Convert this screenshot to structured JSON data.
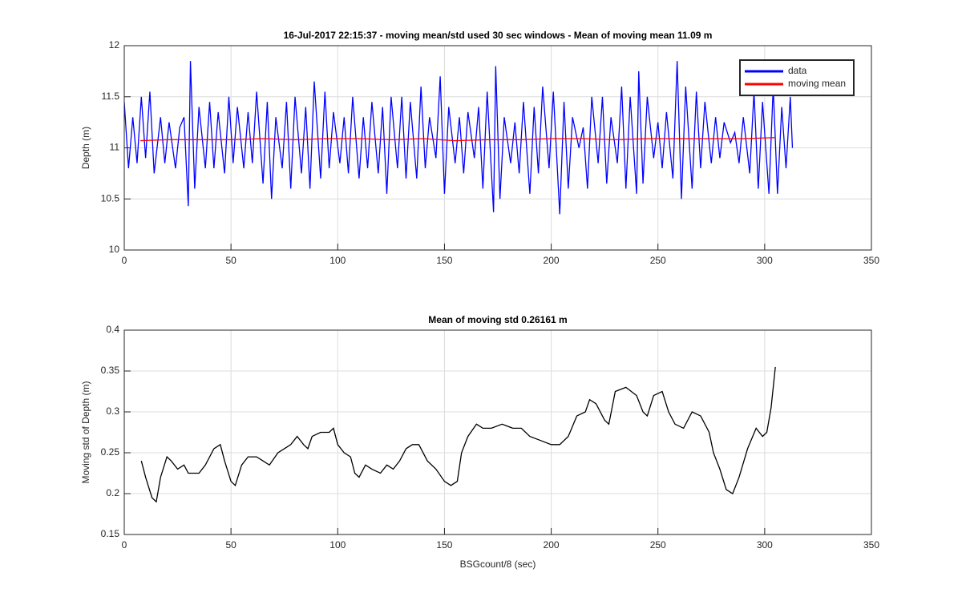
{
  "chart_data": [
    {
      "type": "line",
      "title": "16-Jul-2017 22:15:37 - moving mean/std used 30 sec windows - Mean of moving mean 11.09 m",
      "ylabel": "Depth (m)",
      "xlim": [
        0,
        350
      ],
      "xticks": [
        0,
        50,
        100,
        150,
        200,
        250,
        300,
        350
      ],
      "ylim": [
        10,
        12
      ],
      "yticks": [
        10,
        10.5,
        11,
        11.5,
        12
      ],
      "grid": true,
      "legend": "upper right",
      "series": [
        {
          "name": "data",
          "color": "#0000ff",
          "x": [
            0,
            2,
            4,
            6,
            8,
            10,
            12,
            14,
            17,
            19,
            21,
            24,
            26,
            28,
            30,
            31,
            33,
            35,
            38,
            40,
            42,
            44,
            47,
            49,
            51,
            53,
            56,
            58,
            60,
            62,
            65,
            67,
            69,
            71,
            74,
            76,
            78,
            80,
            83,
            85,
            87,
            89,
            92,
            94,
            96,
            98,
            101,
            103,
            105,
            107,
            110,
            112,
            114,
            116,
            119,
            121,
            123,
            125,
            128,
            130,
            132,
            134,
            137,
            139,
            141,
            143,
            146,
            148,
            150,
            152,
            155,
            157,
            159,
            161,
            164,
            166,
            168,
            170,
            173,
            174,
            176,
            178,
            181,
            183,
            185,
            187,
            190,
            192,
            194,
            196,
            199,
            201,
            204,
            206,
            208,
            210,
            213,
            215,
            217,
            219,
            222,
            224,
            226,
            228,
            231,
            233,
            235,
            237,
            240,
            241,
            243,
            245,
            248,
            250,
            252,
            254,
            257,
            259,
            261,
            263,
            266,
            268,
            270,
            272,
            275,
            277,
            279,
            281,
            284,
            286,
            288,
            290,
            293,
            295,
            297,
            299,
            302,
            304,
            306,
            308,
            310,
            312,
            313
          ],
          "values": [
            11.45,
            10.8,
            11.3,
            10.85,
            11.5,
            10.9,
            11.55,
            10.75,
            11.3,
            10.85,
            11.25,
            10.8,
            11.2,
            11.3,
            10.43,
            11.85,
            10.6,
            11.4,
            10.8,
            11.45,
            10.8,
            11.35,
            10.75,
            11.5,
            10.85,
            11.4,
            10.8,
            11.35,
            10.85,
            11.55,
            10.65,
            11.45,
            10.5,
            11.3,
            10.8,
            11.45,
            10.6,
            11.5,
            10.75,
            11.4,
            10.6,
            11.65,
            10.7,
            11.55,
            10.8,
            11.35,
            10.85,
            11.3,
            10.75,
            11.5,
            10.7,
            11.3,
            10.8,
            11.45,
            10.75,
            11.4,
            10.55,
            11.5,
            10.8,
            11.5,
            10.7,
            11.45,
            10.7,
            11.6,
            10.8,
            11.3,
            10.9,
            11.7,
            10.55,
            11.4,
            10.85,
            11.3,
            10.75,
            11.35,
            10.9,
            11.4,
            10.6,
            11.55,
            10.37,
            11.8,
            10.5,
            11.3,
            10.85,
            11.25,
            10.75,
            11.45,
            10.55,
            11.4,
            10.75,
            11.6,
            10.8,
            11.55,
            10.35,
            11.45,
            10.6,
            11.3,
            11.0,
            11.2,
            10.6,
            11.5,
            10.85,
            11.5,
            10.65,
            11.3,
            10.85,
            11.6,
            10.6,
            11.5,
            10.55,
            11.75,
            10.65,
            11.5,
            10.9,
            11.25,
            10.8,
            11.35,
            10.7,
            11.85,
            10.5,
            11.6,
            10.6,
            11.55,
            10.8,
            11.45,
            10.85,
            11.3,
            10.9,
            11.25,
            11.05,
            11.15,
            10.85,
            11.3,
            10.75,
            11.55,
            10.6,
            11.45,
            10.55,
            11.6,
            10.55,
            11.4,
            10.8,
            11.5,
            11.0
          ]
        },
        {
          "name": "moving mean",
          "color": "#ff0000",
          "x": [
            7.5,
            20,
            35,
            50,
            65,
            80,
            95,
            110,
            125,
            140,
            155,
            170,
            185,
            200,
            215,
            230,
            245,
            260,
            275,
            290,
            305
          ],
          "values": [
            11.07,
            11.08,
            11.08,
            11.08,
            11.09,
            11.08,
            11.09,
            11.09,
            11.08,
            11.09,
            11.07,
            11.08,
            11.08,
            11.09,
            11.09,
            11.08,
            11.09,
            11.09,
            11.09,
            11.09,
            11.1
          ]
        }
      ]
    },
    {
      "type": "line",
      "title": "Mean of moving std 0.26161 m",
      "xlabel": "BSGcount/8 (sec)",
      "ylabel": "Moving std of Depth (m)",
      "xlim": [
        0,
        350
      ],
      "xticks": [
        0,
        50,
        100,
        150,
        200,
        250,
        300,
        350
      ],
      "ylim": [
        0.15,
        0.4
      ],
      "yticks": [
        0.15,
        0.2,
        0.25,
        0.3,
        0.35,
        0.4
      ],
      "grid": true,
      "series": [
        {
          "color": "#000000",
          "x": [
            8,
            10,
            13,
            15,
            17,
            20,
            22,
            25,
            28,
            30,
            35,
            38,
            42,
            45,
            47,
            50,
            52,
            55,
            58,
            62,
            65,
            68,
            72,
            75,
            78,
            81,
            84,
            86,
            88,
            92,
            96,
            98,
            100,
            103,
            106,
            108,
            110,
            113,
            116,
            120,
            123,
            126,
            129,
            132,
            135,
            138,
            142,
            146,
            150,
            153,
            156,
            158,
            161,
            165,
            168,
            172,
            177,
            182,
            186,
            190,
            195,
            200,
            204,
            208,
            212,
            216,
            218,
            221,
            225,
            227,
            230,
            235,
            240,
            243,
            245,
            248,
            252,
            255,
            258,
            262,
            266,
            270,
            274,
            276,
            279,
            282,
            285,
            288,
            292,
            296,
            299,
            301,
            303,
            305
          ],
          "values": [
            0.24,
            0.22,
            0.195,
            0.19,
            0.22,
            0.245,
            0.24,
            0.23,
            0.235,
            0.225,
            0.225,
            0.235,
            0.255,
            0.26,
            0.24,
            0.215,
            0.21,
            0.235,
            0.245,
            0.245,
            0.24,
            0.235,
            0.25,
            0.255,
            0.26,
            0.27,
            0.26,
            0.255,
            0.27,
            0.275,
            0.275,
            0.28,
            0.26,
            0.25,
            0.245,
            0.225,
            0.22,
            0.235,
            0.23,
            0.225,
            0.235,
            0.23,
            0.24,
            0.255,
            0.26,
            0.26,
            0.24,
            0.23,
            0.215,
            0.21,
            0.215,
            0.25,
            0.27,
            0.285,
            0.28,
            0.28,
            0.285,
            0.28,
            0.28,
            0.27,
            0.265,
            0.26,
            0.26,
            0.27,
            0.295,
            0.3,
            0.315,
            0.31,
            0.29,
            0.285,
            0.325,
            0.33,
            0.32,
            0.3,
            0.295,
            0.32,
            0.325,
            0.3,
            0.285,
            0.28,
            0.3,
            0.295,
            0.275,
            0.25,
            0.23,
            0.205,
            0.2,
            0.22,
            0.255,
            0.28,
            0.27,
            0.275,
            0.305,
            0.355
          ]
        }
      ]
    }
  ]
}
